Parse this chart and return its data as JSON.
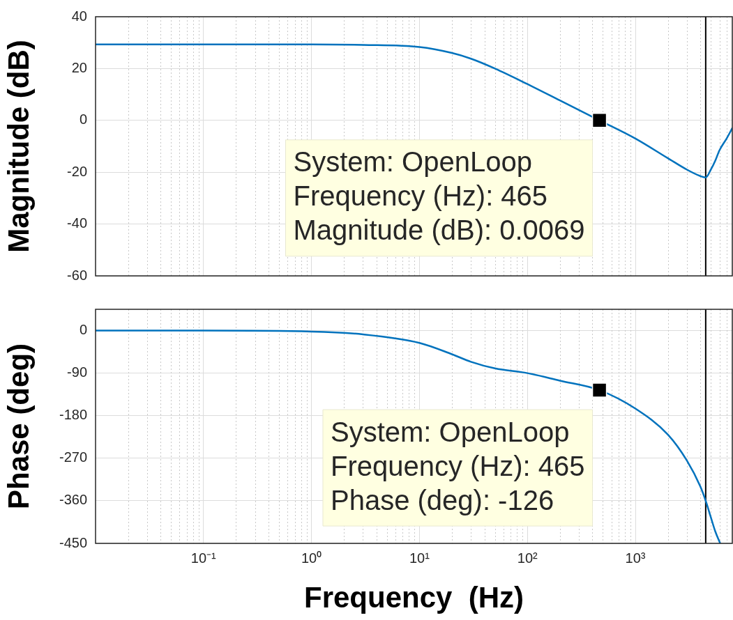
{
  "chart_data": [
    {
      "type": "line",
      "ylabel": "Magnitude (dB)",
      "log": "x",
      "grid": true,
      "legend": false,
      "marker": "none",
      "line_style": "solid",
      "tick_labels": "y",
      "xlim": [
        0.01,
        7900
      ],
      "ylim": [
        -60,
        40
      ],
      "xticks": [
        {
          "value": 0.1,
          "label": null
        },
        {
          "value": 1,
          "label": null
        },
        {
          "value": 10,
          "label": null
        },
        {
          "value": 100,
          "label": null
        },
        {
          "value": 1000,
          "label": null
        }
      ],
      "yticks": [
        -60,
        -40,
        -20,
        0,
        20,
        40
      ],
      "series": [
        {
          "color": "#0072bd",
          "x": [
            0.01,
            0.1,
            1,
            3,
            10,
            20,
            30,
            50,
            100,
            200,
            465,
            1000,
            2000,
            3000,
            4000,
            4480,
            5000,
            5500,
            6000,
            7000,
            7900
          ],
          "values": [
            29.3,
            29.3,
            29.3,
            29.1,
            28.3,
            26,
            23.8,
            20,
            14,
            7.7,
            0.0069,
            -7,
            -14.6,
            -19,
            -21.5,
            -22,
            -19,
            -15.5,
            -11.6,
            -7,
            -3
          ]
        }
      ],
      "ref_lines": [
        {
          "axis": "x",
          "value": 4480,
          "color": "#000000"
        }
      ],
      "annotations": [
        {
          "text": "System: OpenLoop\nFrequency (Hz): 465\nMagnitude (dB): 0.0069",
          "x": 465,
          "y": 0.0069
        }
      ]
    },
    {
      "type": "line",
      "xlabel": "Frequency  (Hz)",
      "ylabel": "Phase (deg)",
      "log": "x",
      "grid": true,
      "legend": false,
      "marker": "none",
      "line_style": "solid",
      "xlim": [
        0.01,
        7900
      ],
      "ylim": [
        -450,
        45
      ],
      "xticks": [
        {
          "value": 0.1,
          "label": "10⁻¹"
        },
        {
          "value": 1,
          "label": "10⁰"
        },
        {
          "value": 10,
          "label": "10¹"
        },
        {
          "value": 100,
          "label": "10²"
        },
        {
          "value": 1000,
          "label": "10³"
        }
      ],
      "yticks": [
        -450,
        -360,
        -270,
        -180,
        -90,
        0
      ],
      "series": [
        {
          "color": "#0072bd",
          "x": [
            0.01,
            0.1,
            1,
            3,
            10,
            20,
            30,
            50,
            100,
            200,
            465,
            1000,
            2000,
            3000,
            4000,
            4480,
            5000,
            5500,
            6100
          ],
          "values": [
            0,
            0,
            -2,
            -8,
            -26,
            -50,
            -66,
            -80,
            -90,
            -106,
            -126,
            -165,
            -220,
            -275,
            -330,
            -360,
            -395,
            -425,
            -450
          ]
        }
      ],
      "ref_lines": [
        {
          "axis": "x",
          "value": 4480,
          "color": "#000000"
        }
      ],
      "annotations": [
        {
          "text": "System: OpenLoop\nFrequency (Hz): 465\nPhase (deg): -126",
          "x": 465,
          "y": -126
        }
      ]
    }
  ]
}
